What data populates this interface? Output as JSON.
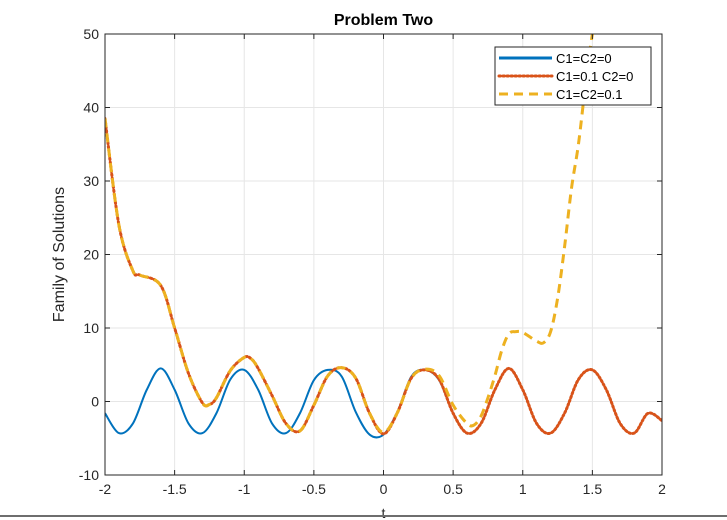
{
  "chart_data": {
    "type": "line",
    "title": "Problem Two",
    "xlabel": "t",
    "ylabel": "Family of Solutions",
    "xlim": [
      -2,
      2
    ],
    "ylim": [
      -10,
      50
    ],
    "x_ticks": [
      "-2",
      "-1.5",
      "-1",
      "-0.5",
      "0",
      "0.5",
      "1",
      "1.5",
      "2"
    ],
    "y_ticks": [
      "-10",
      "0",
      "10",
      "20",
      "30",
      "40",
      "50"
    ],
    "grid": true,
    "legend_position": "top-right",
    "series": [
      {
        "name": "C1=C2=0",
        "color": "#0072BD",
        "style": "solid",
        "x": [
          -2.0,
          -1.9,
          -1.8,
          -1.7,
          -1.6,
          -1.5,
          -1.4,
          -1.3,
          -1.2,
          -1.1,
          -1.0,
          -0.9,
          -0.8,
          -0.7,
          -0.6,
          -0.5,
          -0.4,
          -0.3,
          -0.2,
          -0.1,
          0.0,
          0.1,
          0.2,
          0.3,
          0.4,
          0.5,
          0.6,
          0.7,
          0.8,
          0.9,
          1.0,
          1.1,
          1.2,
          1.3,
          1.4,
          1.5,
          1.6,
          1.7,
          1.8,
          1.9,
          2.0
        ],
        "y": [
          -1.6,
          -4.3,
          -3.0,
          1.6,
          4.5,
          1.6,
          -3.0,
          -4.3,
          -1.6,
          3.0,
          4.3,
          1.6,
          -3.0,
          -4.3,
          -1.6,
          2.9,
          4.3,
          3.4,
          -1.4,
          -4.5,
          -4.5,
          -1.4,
          3.4,
          4.3,
          2.9,
          -1.6,
          -4.3,
          -3.0,
          1.6,
          4.5,
          1.6,
          -3.0,
          -4.3,
          -1.6,
          3.0,
          4.3,
          1.6,
          -3.0,
          -4.3,
          -1.6,
          -2.6
        ]
      },
      {
        "name": "C1=0.1 C2=0",
        "color": "#D95319",
        "style": "dotted",
        "x": [
          -2.0,
          -1.9,
          -1.8,
          -1.75,
          -1.6,
          -1.5,
          -1.4,
          -1.3,
          -1.25,
          -1.2,
          -1.1,
          -1.0,
          -0.95,
          -0.9,
          -0.8,
          -0.7,
          -0.6,
          -0.5,
          -0.4,
          -0.3,
          -0.2,
          -0.1,
          0.0,
          0.1,
          0.2,
          0.3,
          0.4,
          0.5,
          0.6,
          0.7,
          0.8,
          0.9,
          1.0,
          1.1,
          1.2,
          1.3,
          1.4,
          1.5,
          1.6,
          1.7,
          1.8,
          1.9,
          2.0
        ],
        "y": [
          38.5,
          24.0,
          17.8,
          17.2,
          15.8,
          10.0,
          3.8,
          -0.2,
          -0.4,
          0.5,
          4.2,
          6.0,
          5.8,
          4.5,
          0.8,
          -3.0,
          -4.0,
          -0.5,
          3.5,
          4.6,
          3.2,
          -1.6,
          -4.4,
          -1.5,
          3.2,
          4.3,
          3.0,
          -1.6,
          -4.3,
          -3.0,
          1.6,
          4.5,
          1.6,
          -3.0,
          -4.3,
          -1.6,
          3.0,
          4.3,
          1.6,
          -3.0,
          -4.3,
          -1.6,
          -2.6
        ]
      },
      {
        "name": "C1=C2=0.1",
        "color": "#EDB120",
        "style": "dashed",
        "x": [
          -2.0,
          -1.9,
          -1.8,
          -1.75,
          -1.6,
          -1.5,
          -1.4,
          -1.3,
          -1.25,
          -1.2,
          -1.1,
          -1.0,
          -0.95,
          -0.9,
          -0.8,
          -0.7,
          -0.6,
          -0.5,
          -0.4,
          -0.3,
          -0.2,
          -0.1,
          0.0,
          0.1,
          0.2,
          0.3,
          0.4,
          0.5,
          0.6,
          0.65,
          0.7,
          0.75,
          0.8,
          0.85,
          0.9,
          0.95,
          1.0,
          1.1,
          1.15,
          1.2,
          1.25,
          1.3,
          1.35,
          1.4,
          1.45,
          1.5,
          1.53
        ],
        "y": [
          38.5,
          24.0,
          17.8,
          17.2,
          15.8,
          10.0,
          3.8,
          -0.2,
          -0.4,
          0.5,
          4.2,
          6.0,
          5.8,
          4.5,
          0.8,
          -3.0,
          -4.0,
          -0.5,
          3.5,
          4.6,
          3.2,
          -1.6,
          -4.2,
          -1.5,
          3.2,
          4.4,
          3.5,
          -0.5,
          -3.0,
          -3.2,
          -2.0,
          0.5,
          3.5,
          7.0,
          9.2,
          9.5,
          9.4,
          8.2,
          8.0,
          9.5,
          14.0,
          21.0,
          29.0,
          35.0,
          43.0,
          50.0,
          52.0
        ]
      }
    ]
  }
}
